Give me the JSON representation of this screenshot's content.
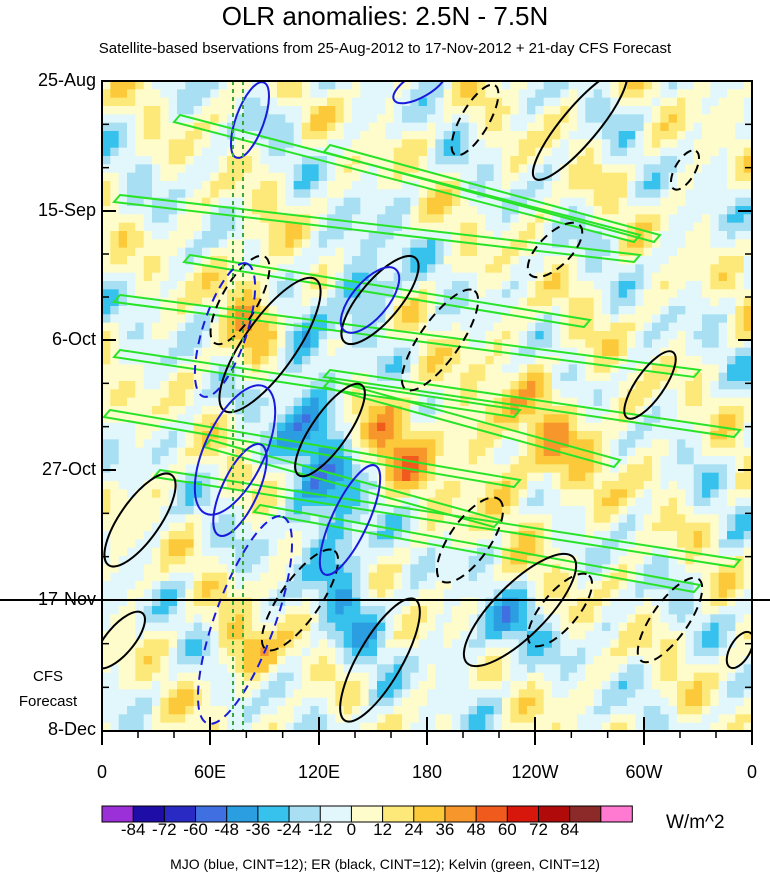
{
  "chart_data": {
    "type": "heatmap",
    "title": "OLR anomalies: 2.5N - 7.5N",
    "subtitle": "Satellite-based bservations from 25-Aug-2012 to 17-Nov-2012 + 21-day CFS Forecast",
    "y_ticks": [
      "25-Aug",
      "15-Sep",
      "6-Oct",
      "27-Oct",
      "17-Nov",
      "8-Dec"
    ],
    "x_ticks": [
      "0",
      "60E",
      "120E",
      "180",
      "120W",
      "60W",
      "0"
    ],
    "forecast_label_line1": "CFS",
    "forecast_label_line2": "Forecast",
    "x_range_deg_east": [
      0,
      360
    ],
    "y_range": [
      "25-Aug-2012",
      "8-Dec-2012"
    ],
    "observation_end": "17-Nov-2012",
    "colorbar": {
      "unit": "W/m^2",
      "labels": [
        "-84",
        "-72",
        "-60",
        "-48",
        "-36",
        "-24",
        "-12",
        "0",
        "12",
        "24",
        "36",
        "48",
        "60",
        "72",
        "84"
      ],
      "colors": [
        "#9b30d9",
        "#1f0da8",
        "#2929c4",
        "#3f6fe0",
        "#2a9ee0",
        "#37c2ee",
        "#a9dff2",
        "#e1f7fb",
        "#fffccc",
        "#fde87a",
        "#fcc93a",
        "#f7962b",
        "#f05a1d",
        "#d8170c",
        "#b00a0a",
        "#8c2a2a",
        "#ff7ad0"
      ]
    },
    "legend_note": "MJO (blue, CINT=12); ER (black, CINT=12); Kelvin (green, CINT=12)",
    "colors": {
      "mjo": "#1a1adb",
      "er": "#000000",
      "kelvin": "#29e329"
    }
  }
}
